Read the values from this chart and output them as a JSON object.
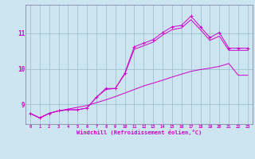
{
  "xlabel": "Windchill (Refroidissement éolien,°C)",
  "bg_color": "#cce5f0",
  "line_color": "#cc00cc",
  "grid_color": "#99bbcc",
  "hours": [
    0,
    1,
    2,
    3,
    4,
    5,
    6,
    7,
    8,
    9,
    10,
    11,
    12,
    13,
    14,
    15,
    16,
    17,
    18,
    19,
    20,
    21,
    22,
    23
  ],
  "line_main": [
    8.75,
    8.62,
    8.75,
    8.82,
    8.85,
    8.85,
    8.9,
    9.2,
    9.45,
    9.45,
    9.88,
    10.62,
    10.72,
    10.82,
    11.02,
    11.18,
    11.22,
    11.48,
    11.18,
    10.88,
    11.02,
    10.58,
    10.58,
    10.58
  ],
  "line_low": [
    8.75,
    8.62,
    8.75,
    8.82,
    8.87,
    8.92,
    8.97,
    9.05,
    9.13,
    9.22,
    9.32,
    9.42,
    9.52,
    9.6,
    9.68,
    9.77,
    9.85,
    9.93,
    9.98,
    10.02,
    10.07,
    10.15,
    9.82,
    9.82
  ],
  "line_mid": [
    8.75,
    8.62,
    8.75,
    8.82,
    8.85,
    8.85,
    8.9,
    9.2,
    9.42,
    9.45,
    9.85,
    10.55,
    10.65,
    10.75,
    10.95,
    11.1,
    11.15,
    11.38,
    11.1,
    10.8,
    10.92,
    10.52,
    10.52,
    10.52
  ],
  "ylim": [
    8.45,
    11.8
  ],
  "xlim": [
    0,
    23
  ]
}
